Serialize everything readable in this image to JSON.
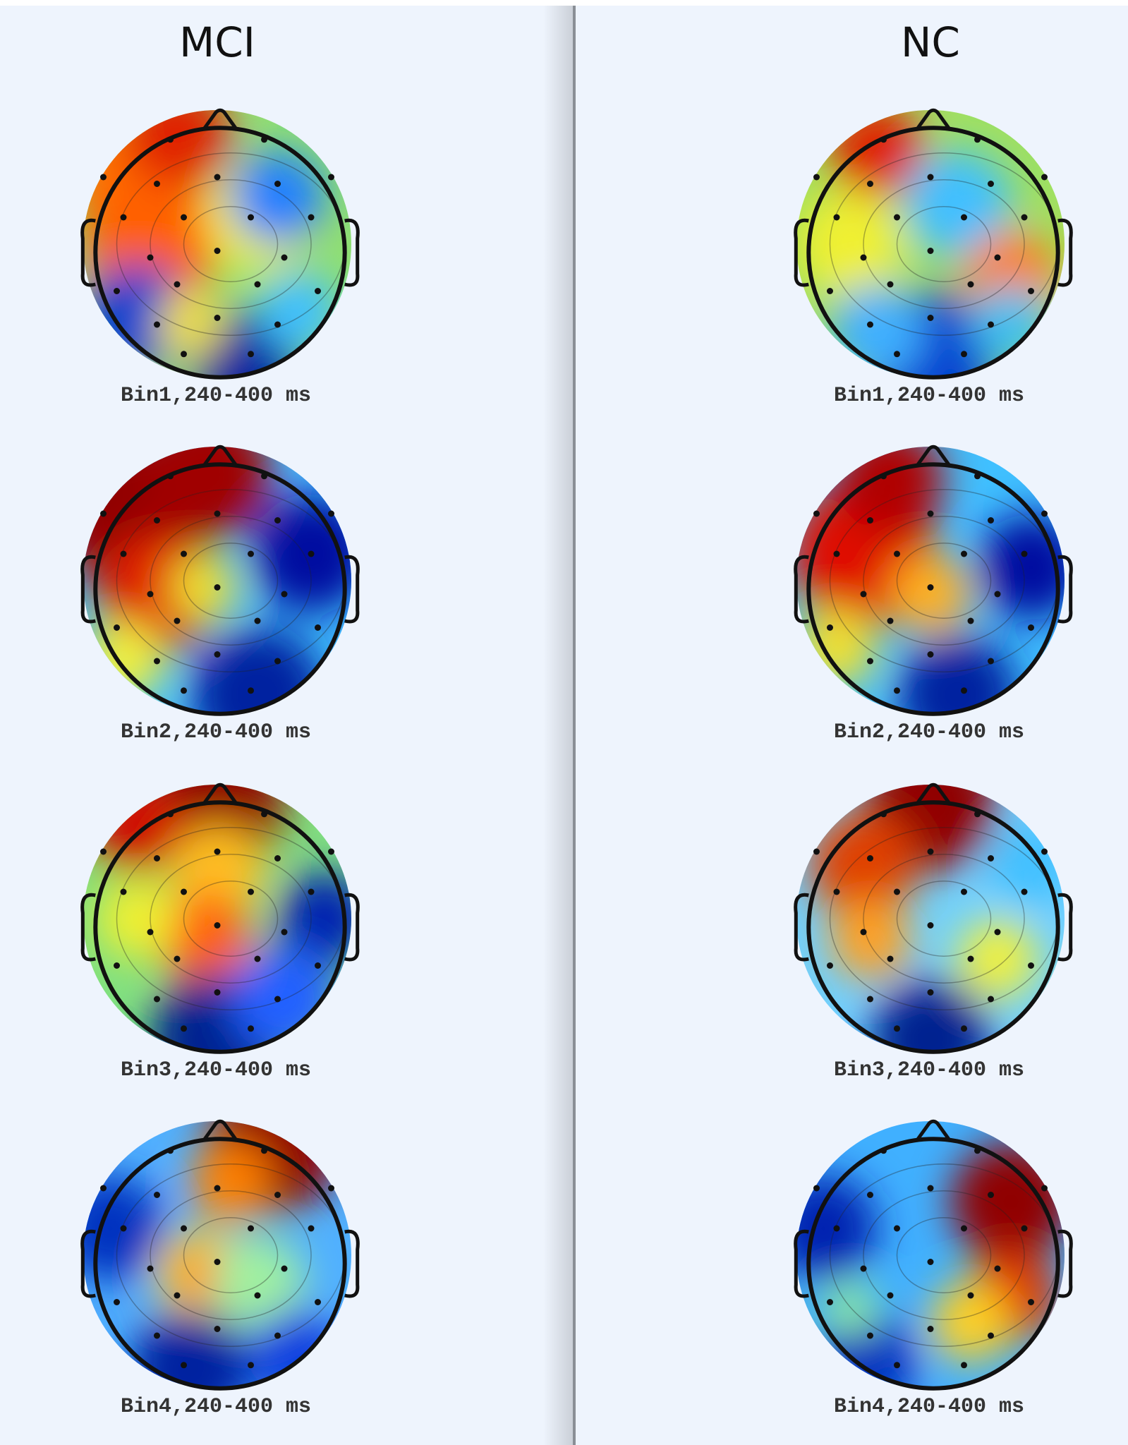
{
  "columns": [
    {
      "title": "MCI",
      "maps": [
        "Bin1,240-400 ms",
        "Bin2,240-400 ms",
        "Bin3,240-400 ms",
        "Bin4,240-400 ms"
      ]
    },
    {
      "title": "NC",
      "maps": [
        "Bin1,240-400 ms",
        "Bin2,240-400 ms",
        "Bin3,240-400 ms",
        "Bin4,240-400 ms"
      ]
    }
  ]
}
